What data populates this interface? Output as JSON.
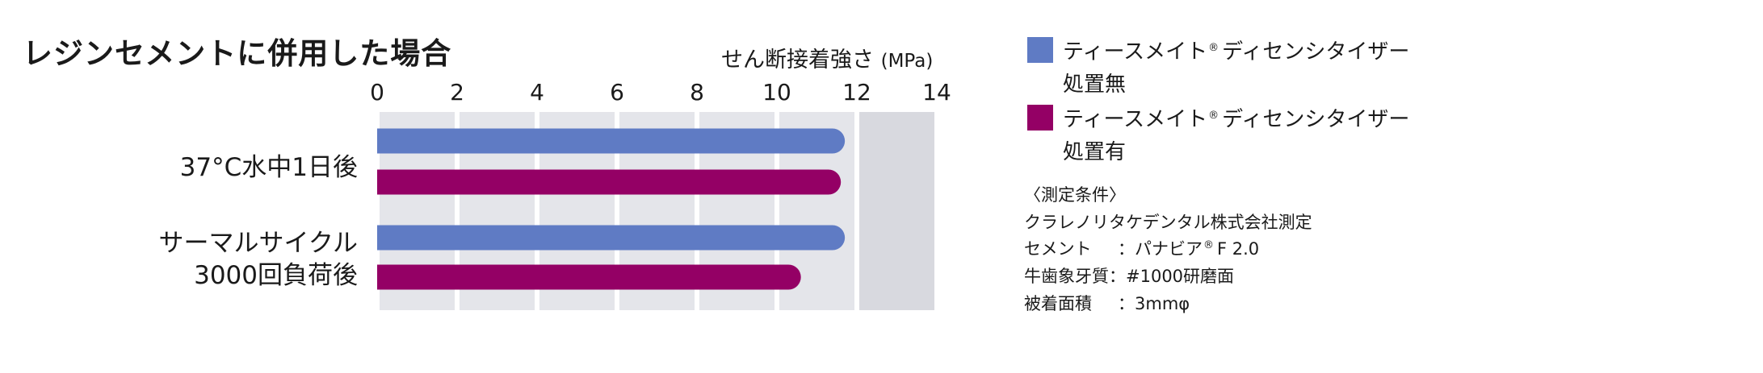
{
  "title": "レジンセメントに併用した場合",
  "axis_unit_label": "せん断接着強さ",
  "axis_unit_paren": "(MPa)",
  "chart_data": {
    "type": "bar",
    "orientation": "horizontal",
    "title": "レジンセメントに併用した場合",
    "xlabel": "せん断接着強さ (MPa)",
    "xlim": [
      0,
      14
    ],
    "ticks": [
      0,
      2,
      4,
      6,
      8,
      10,
      12,
      14
    ],
    "tick_labels": [
      "0",
      "2",
      "4",
      "6",
      "8",
      "10",
      "12",
      "14"
    ],
    "categories": [
      "37°C水中1日後",
      "サーマルサイクル 3000回負荷後"
    ],
    "category_lines": [
      [
        "37°C水中1日後"
      ],
      [
        "サーマルサイクル",
        "3000回負荷後"
      ]
    ],
    "series": [
      {
        "name": "ティースメイト® ディセンシタイザー 処置無",
        "color": "#5f7bc4",
        "values": [
          11.7,
          11.7
        ]
      },
      {
        "name": "ティースメイト® ディセンシタイザー 処置有",
        "color": "#940065",
        "values": [
          11.6,
          10.6
        ]
      }
    ],
    "grid": true,
    "legend_position": "right"
  },
  "legend": [
    {
      "line1": "ティースメイト",
      "reg": "®",
      "line1b": "ディセンシタイザー",
      "line2": "処置無",
      "color": "#5f7bc4"
    },
    {
      "line1": "ティースメイト",
      "reg": "®",
      "line1b": "ディセンシタイザー",
      "line2": "処置有",
      "color": "#940065"
    }
  ],
  "conditions": {
    "heading": "〈測定条件〉",
    "lab": "クラレノリタケデンタル株式会社測定",
    "rows": [
      {
        "key": "セメント",
        "sep": "：",
        "value": "パナビア",
        "reg": "®",
        "value2": "F 2.0"
      },
      {
        "key": "牛歯象牙質",
        "sep": "：",
        "value": "#1000研磨面"
      },
      {
        "key": "被着面積",
        "sep": "：",
        "value": "3mmφ"
      }
    ]
  }
}
